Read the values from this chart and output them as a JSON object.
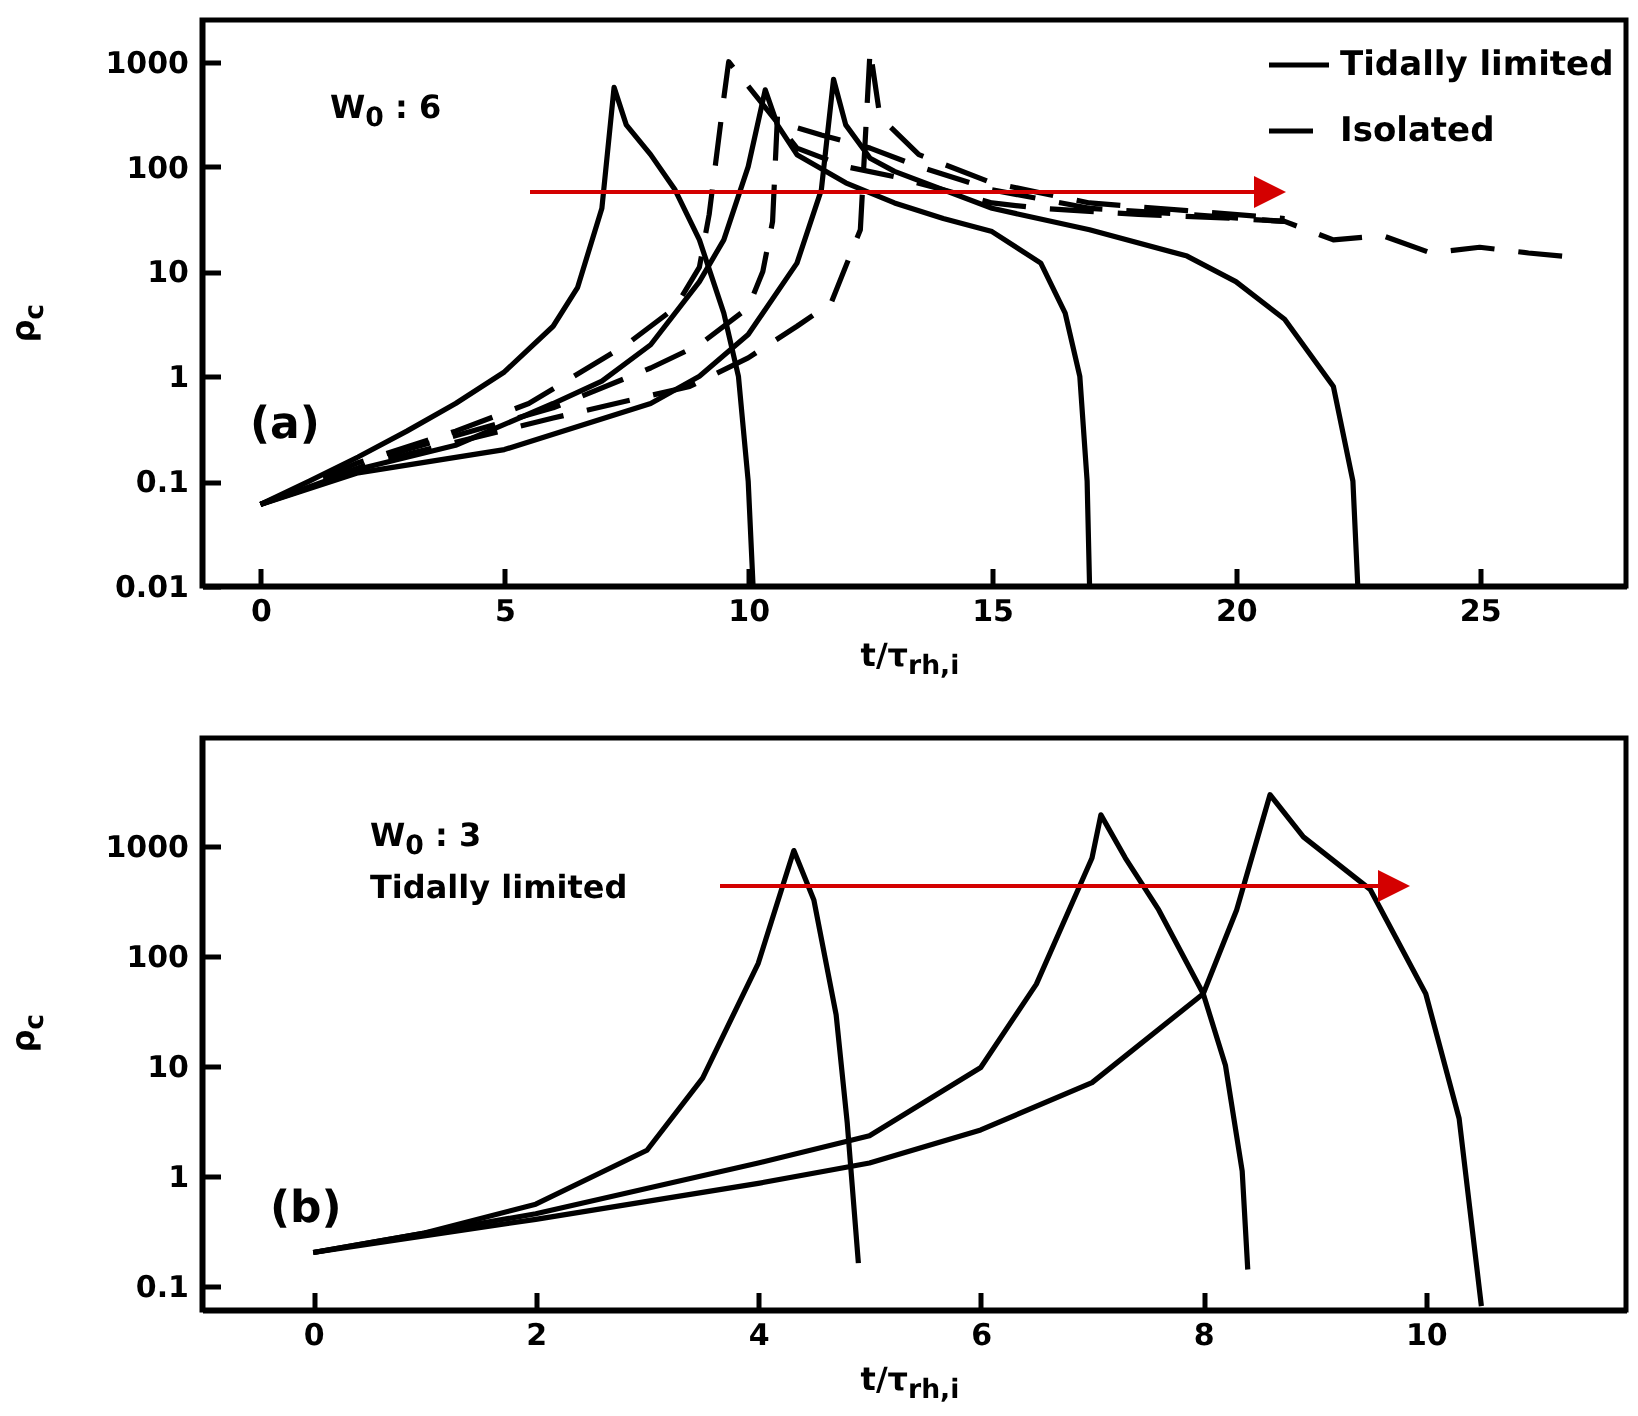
{
  "chart_data": [
    {
      "type": "line",
      "xlabel": "t/τ$_{rh,i}$",
      "ylabel": "ρ$_{c}$",
      "log": true,
      "grid": false,
      "legend": "top right",
      "xlim": [
        -1.2,
        28
      ],
      "xticks": [
        0,
        5,
        10,
        15,
        20,
        25
      ],
      "ylim": [
        0.01,
        2500
      ],
      "yticks": [
        0.01,
        0.1,
        1,
        10,
        100,
        1000
      ],
      "annotations": [
        "W$_{0}$ : 6",
        "(a)"
      ],
      "series": [
        {
          "name": "Tidally limited",
          "color": "#000000",
          "line_style": "solid",
          "x": [
            0,
            1,
            2,
            3,
            4,
            5,
            6,
            6.5,
            7,
            7.25,
            7.5,
            8,
            8.5,
            9,
            9.5,
            9.8,
            10,
            10.1
          ],
          "values": [
            0.06,
            0.1,
            0.17,
            0.3,
            0.55,
            1.1,
            3,
            7,
            40,
            570,
            250,
            130,
            60,
            20,
            4,
            1,
            0.1,
            0.01
          ]
        },
        {
          "color": "#000000",
          "line_style": "solid",
          "x": [
            0,
            2,
            4,
            6,
            7,
            8,
            9,
            9.5,
            10,
            10.35,
            10.6,
            11,
            12,
            13,
            14,
            15,
            16,
            16.5,
            16.8,
            16.95,
            17
          ],
          "values": [
            0.06,
            0.13,
            0.22,
            0.55,
            0.9,
            2,
            8,
            20,
            100,
            540,
            250,
            130,
            70,
            45,
            32,
            24,
            12,
            4,
            1,
            0.1,
            0.01
          ]
        },
        {
          "color": "#000000",
          "line_style": "solid",
          "x": [
            0,
            2,
            5,
            8,
            9,
            10,
            11,
            11.5,
            11.75,
            12,
            12.5,
            13,
            15,
            17,
            19,
            20,
            21,
            22,
            22.4,
            22.5
          ],
          "values": [
            0.06,
            0.12,
            0.2,
            0.55,
            1,
            2.5,
            12,
            60,
            680,
            250,
            120,
            90,
            40,
            25,
            14,
            8,
            3.5,
            0.8,
            0.1,
            0.01
          ]
        },
        {
          "name": "Isolated",
          "color": "#000000",
          "line_style": "dashed",
          "x": [
            0,
            2,
            4,
            5.5,
            7.5,
            8.5,
            9,
            9.2,
            9.5,
            9.6,
            10.5,
            11,
            12,
            13,
            14,
            15,
            16,
            18,
            20,
            21,
            22,
            23,
            24,
            25,
            26,
            26.7
          ],
          "values": [
            0.06,
            0.15,
            0.3,
            0.55,
            2,
            4.5,
            11,
            35,
            450,
            1000,
            300,
            150,
            100,
            80,
            60,
            45,
            40,
            35,
            32,
            30,
            20,
            22,
            15,
            17,
            15,
            14
          ]
        },
        {
          "color": "#000000",
          "line_style": "dashed",
          "x": [
            0,
            3,
            6,
            8,
            9,
            10,
            10.3,
            10.5,
            10.6,
            10.8,
            11.5,
            12.5,
            13.5,
            15,
            17,
            19,
            21
          ],
          "values": [
            0.06,
            0.2,
            0.5,
            1.2,
            2,
            4.5,
            10,
            30,
            300,
            250,
            200,
            150,
            100,
            60,
            40,
            35,
            30
          ]
        },
        {
          "color": "#000000",
          "line_style": "dashed",
          "x": [
            0,
            3,
            6,
            8.8,
            10,
            11,
            11.7,
            12.3,
            12.5,
            12.7,
            13.5,
            15,
            17,
            19,
            21
          ],
          "values": [
            0.06,
            0.18,
            0.4,
            0.8,
            1.5,
            3,
            5,
            25,
            1300,
            300,
            130,
            70,
            45,
            38,
            32
          ]
        }
      ]
    },
    {
      "type": "line",
      "xlabel": "t/τ$_{rh,i}$",
      "ylabel": "ρ$_{c}$",
      "log": true,
      "grid": false,
      "xlim": [
        -1,
        11.8
      ],
      "xticks": [
        0,
        2,
        4,
        6,
        8,
        10
      ],
      "ylim": [
        0.06,
        9500
      ],
      "yticks": [
        0.1,
        1,
        10,
        100,
        1000
      ],
      "annotations": [
        "W$_{0}$ : 3",
        "Tidally limited",
        "(b)"
      ],
      "series": [
        {
          "color": "#000000",
          "line_style": "solid",
          "x": [
            0,
            1,
            2,
            3,
            3.5,
            4,
            4.32,
            4.5,
            4.7,
            4.8,
            4.9
          ],
          "values": [
            0.2,
            0.3,
            0.55,
            1.7,
            7.7,
            85,
            900,
            320,
            29,
            3,
            0.16
          ]
        },
        {
          "color": "#000000",
          "line_style": "solid",
          "x": [
            0,
            2,
            4,
            5,
            6,
            6.5,
            7,
            7.08,
            7.3,
            7.6,
            8,
            8.2,
            8.35,
            8.4
          ],
          "values": [
            0.2,
            0.45,
            1.3,
            2.3,
            9.6,
            55,
            770,
            1900,
            770,
            260,
            45,
            10,
            1.1,
            0.14
          ]
        },
        {
          "color": "#000000",
          "line_style": "solid",
          "x": [
            0,
            2,
            4,
            5,
            6,
            7,
            8,
            8.3,
            8.6,
            8.9,
            9.5,
            10,
            10.3,
            10.5
          ],
          "values": [
            0.2,
            0.4,
            0.85,
            1.3,
            2.6,
            7,
            45,
            260,
            2900,
            1200,
            400,
            45,
            3.3,
            0.065
          ]
        }
      ]
    }
  ]
}
